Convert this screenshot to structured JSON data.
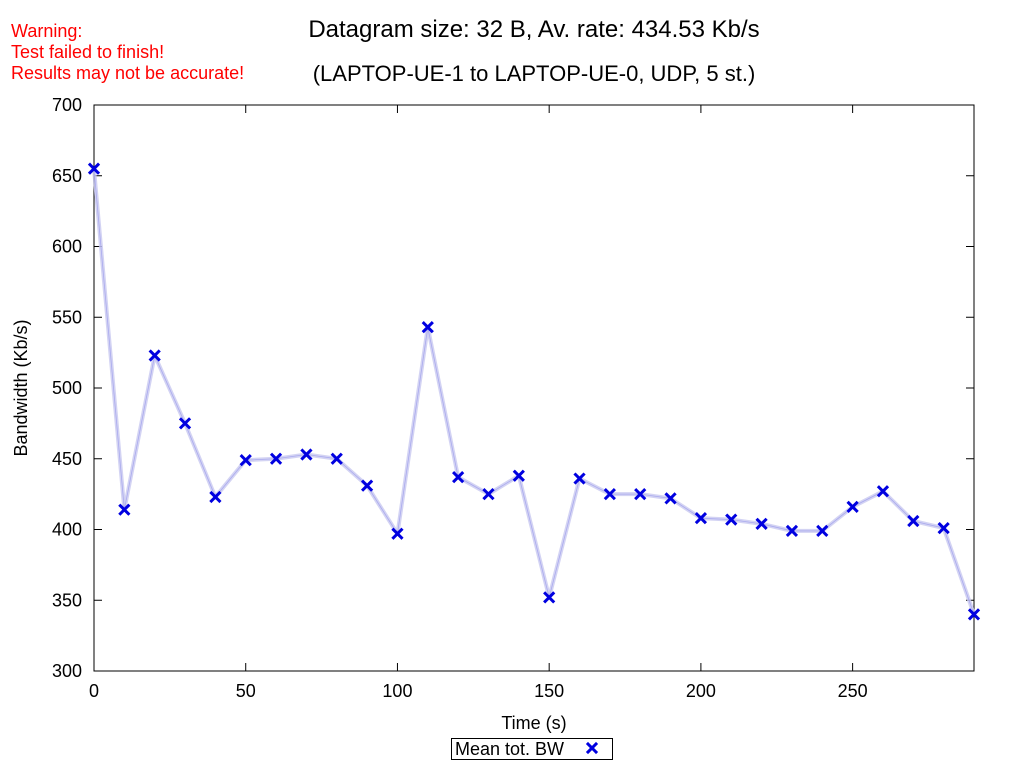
{
  "warning": {
    "line1": "Warning:",
    "line2": "Test failed to finish!",
    "line3": "Results may not be accurate!",
    "color": "#ff0000"
  },
  "chart_data": {
    "type": "line",
    "title": "Datagram size: 32 B, Av. rate: 434.53 Kb/s",
    "subtitle": "(LAPTOP-UE-1 to LAPTOP-UE-0, UDP, 5 st.)",
    "xlabel": "Time (s)",
    "ylabel": "Bandwidth (Kb/s)",
    "xlim": [
      0,
      290
    ],
    "ylim": [
      300,
      700
    ],
    "xticks": [
      0,
      50,
      100,
      150,
      200,
      250
    ],
    "yticks": [
      300,
      350,
      400,
      450,
      500,
      550,
      600,
      650,
      700
    ],
    "grid": false,
    "legend_position": "bottom-center",
    "series": [
      {
        "name": "Mean tot. BW",
        "color": "#0000e0",
        "band_color": "#c8c8f0",
        "x": [
          0,
          10,
          20,
          30,
          40,
          50,
          60,
          70,
          80,
          90,
          100,
          110,
          120,
          130,
          140,
          150,
          160,
          170,
          180,
          190,
          200,
          210,
          220,
          230,
          240,
          250,
          260,
          270,
          280,
          290
        ],
        "values": [
          655,
          414,
          523,
          475,
          423,
          449,
          450,
          453,
          450,
          431,
          397,
          543,
          437,
          425,
          438,
          352,
          436,
          425,
          425,
          422,
          408,
          407,
          404,
          399,
          399,
          416,
          427,
          406,
          401,
          340
        ]
      }
    ]
  }
}
